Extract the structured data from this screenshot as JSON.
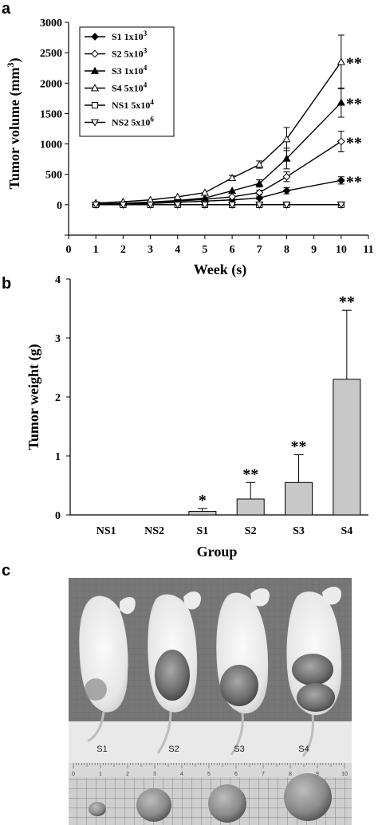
{
  "panels": {
    "a": "a",
    "b": "b",
    "c": "c"
  },
  "chart_data": [
    {
      "type": "line",
      "panel": "a",
      "title": "",
      "xlabel": "Week (s)",
      "ylabel_main": "Tumor volume (mm",
      "ylabel_sup": "3",
      "ylabel_close": ")",
      "xlim": [
        0,
        11
      ],
      "ylim": [
        -500,
        3000
      ],
      "xticks": [
        0,
        1,
        2,
        3,
        4,
        5,
        6,
        7,
        8,
        9,
        10,
        11
      ],
      "yticks": [
        -500,
        0,
        500,
        1000,
        1500,
        2000,
        2500,
        3000
      ],
      "ytick_labels": [
        "",
        "0",
        "500",
        "1000",
        "1500",
        "2000",
        "2500",
        "3000"
      ],
      "x": [
        1,
        2,
        3,
        4,
        5,
        6,
        7,
        8,
        10
      ],
      "series": [
        {
          "name": "S1 1x10",
          "sup": "3",
          "marker": "diamond-filled",
          "values": [
            5,
            10,
            20,
            40,
            60,
            80,
            110,
            230,
            400
          ],
          "err": [
            0,
            0,
            0,
            0,
            0,
            0,
            20,
            50,
            60
          ]
        },
        {
          "name": "S2 5x10",
          "sup": "3",
          "marker": "diamond-open",
          "values": [
            10,
            20,
            40,
            60,
            90,
            130,
            200,
            460,
            1040
          ],
          "err": [
            0,
            0,
            0,
            0,
            0,
            0,
            40,
            80,
            170
          ]
        },
        {
          "name": "S3 1x10",
          "sup": "4",
          "marker": "triangle-filled",
          "values": [
            15,
            25,
            45,
            70,
            110,
            230,
            350,
            760,
            1680
          ],
          "err": [
            0,
            0,
            0,
            0,
            0,
            0,
            60,
            170,
            240
          ]
        },
        {
          "name": "S4 5x10",
          "sup": "4",
          "marker": "triangle-open",
          "values": [
            30,
            50,
            80,
            130,
            200,
            440,
            660,
            1080,
            2350
          ],
          "err": [
            0,
            0,
            0,
            0,
            0,
            40,
            60,
            190,
            440
          ]
        },
        {
          "name": "NS1 5x10",
          "sup": "4",
          "marker": "square-open",
          "values": [
            0,
            0,
            0,
            0,
            0,
            0,
            0,
            0,
            0
          ],
          "err": [
            0,
            0,
            0,
            0,
            0,
            0,
            0,
            0,
            0
          ]
        },
        {
          "name": "NS2 5x10",
          "sup": "6",
          "marker": "triangle-down-open",
          "values": [
            0,
            0,
            0,
            0,
            0,
            0,
            0,
            0,
            0
          ],
          "err": [
            0,
            0,
            0,
            0,
            0,
            0,
            0,
            0,
            0
          ]
        }
      ],
      "annotations": [
        {
          "series_index": 3,
          "text": "**"
        },
        {
          "series_index": 2,
          "text": "**"
        },
        {
          "series_index": 1,
          "text": "**"
        },
        {
          "series_index": 0,
          "text": "**"
        }
      ],
      "legend": "top-left",
      "grid": false
    },
    {
      "type": "bar",
      "panel": "b",
      "title": "",
      "xlabel": "Group",
      "ylabel": "Tumor weight (g)",
      "ylim": [
        0,
        4
      ],
      "yticks": [
        0,
        1,
        2,
        3,
        4
      ],
      "categories": [
        "NS1",
        "NS2",
        "S1",
        "S2",
        "S3",
        "S4"
      ],
      "values": [
        0,
        0,
        0.06,
        0.27,
        0.55,
        2.3
      ],
      "err": [
        0,
        0,
        0.05,
        0.28,
        0.47,
        1.17
      ],
      "annotations": [
        "",
        "",
        "*",
        "**",
        "**",
        "**"
      ],
      "bar_color": "#c8c8c8",
      "grid": false
    }
  ],
  "photo": {
    "labels": [
      "S1",
      "S2",
      "S3",
      "S4"
    ],
    "ruler_numbers": [
      "0",
      "1",
      "2",
      "3",
      "4",
      "5",
      "6",
      "7",
      "8",
      "9",
      "10"
    ]
  }
}
